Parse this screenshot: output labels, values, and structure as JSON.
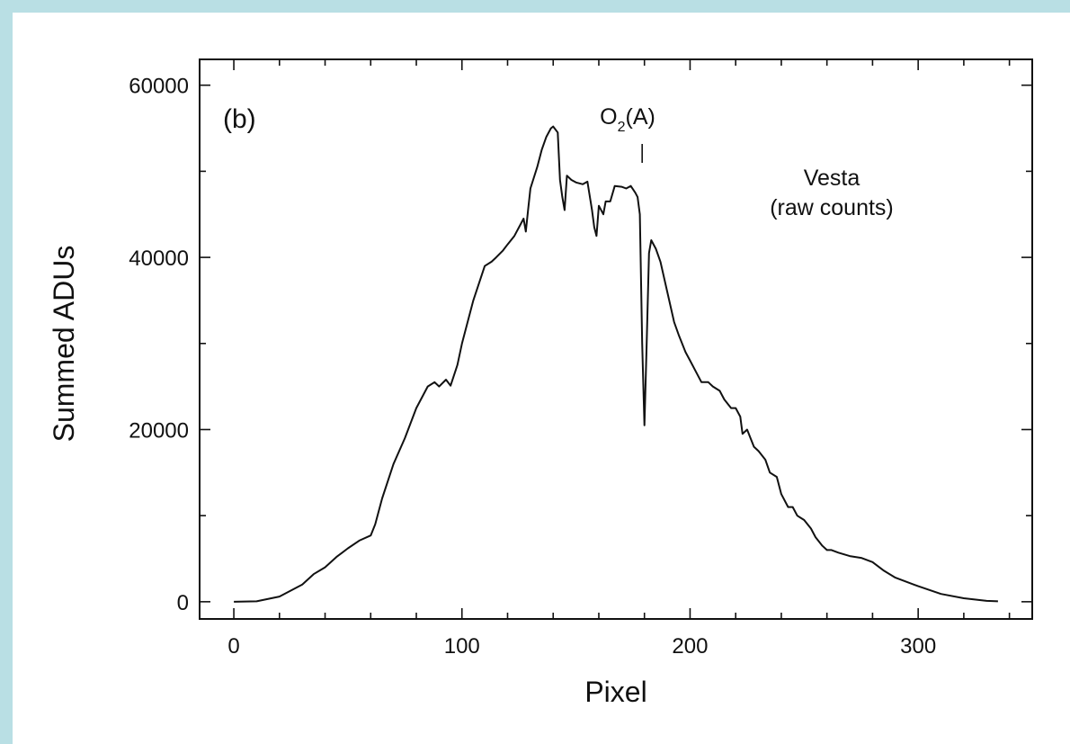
{
  "chart_data": {
    "type": "line",
    "panel_label": "(b)",
    "xlabel": "Pixel",
    "ylabel": "Summed ADUs",
    "xlim": [
      -15,
      350
    ],
    "ylim": [
      -2000,
      63000
    ],
    "x_ticks": [
      0,
      100,
      200,
      300
    ],
    "x_tick_labels": [
      "0",
      "100",
      "200",
      "300"
    ],
    "y_ticks": [
      0,
      20000,
      40000,
      60000
    ],
    "y_tick_labels": [
      "0",
      "20000",
      "40000",
      "60000"
    ],
    "x_minor_step": 20,
    "y_minor_step": 10000,
    "grid": false,
    "annotations": {
      "o2": {
        "base": "O",
        "sub": "2",
        "rest": "(A)",
        "x": 179
      },
      "target": {
        "line1": "Vesta",
        "line2": "(raw counts)"
      }
    },
    "series": [
      {
        "color": "#111111",
        "x": [
          0,
          10,
          20,
          30,
          35,
          40,
          45,
          50,
          55,
          60,
          62,
          65,
          70,
          75,
          80,
          85,
          88,
          90,
          93,
          95,
          98,
          100,
          105,
          110,
          113,
          115,
          118,
          120,
          123,
          125,
          127,
          128,
          129,
          130,
          133,
          135,
          137,
          139,
          140,
          142,
          143,
          144,
          145,
          146,
          148,
          150,
          153,
          155,
          157,
          158,
          159,
          160,
          162,
          163,
          165,
          167,
          170,
          172,
          174,
          176,
          177,
          178,
          179,
          180,
          181,
          182,
          183,
          185,
          187,
          190,
          193,
          195,
          198,
          200,
          203,
          205,
          208,
          210,
          213,
          215,
          218,
          220,
          222,
          223,
          225,
          228,
          230,
          233,
          235,
          238,
          240,
          243,
          245,
          247,
          250,
          253,
          255,
          258,
          260,
          262,
          265,
          270,
          275,
          280,
          285,
          290,
          300,
          310,
          320,
          330,
          335
        ],
        "y": [
          0,
          50,
          600,
          2000,
          3200,
          4000,
          5200,
          6200,
          7100,
          7700,
          9000,
          12000,
          16000,
          19000,
          22500,
          25000,
          25500,
          25000,
          25800,
          25100,
          27500,
          30000,
          35000,
          39000,
          39500,
          40000,
          40800,
          41500,
          42500,
          43500,
          44500,
          43000,
          45500,
          48000,
          50500,
          52500,
          54000,
          55000,
          55200,
          54500,
          49000,
          47000,
          45500,
          49500,
          49000,
          48700,
          48500,
          48800,
          45500,
          43500,
          42500,
          46000,
          45000,
          46500,
          46500,
          48300,
          48200,
          48000,
          48300,
          47500,
          47000,
          45000,
          30000,
          20500,
          30000,
          40500,
          42000,
          41000,
          39500,
          36000,
          32500,
          31000,
          29000,
          28000,
          26500,
          25500,
          25500,
          25000,
          24500,
          23500,
          22500,
          22500,
          21500,
          19500,
          20000,
          18000,
          17500,
          16500,
          15000,
          14500,
          12500,
          11000,
          11000,
          10000,
          9500,
          8500,
          7500,
          6500,
          6000,
          6000,
          5700,
          5300,
          5100,
          4600,
          3600,
          2800,
          1800,
          900,
          400,
          100,
          50
        ]
      }
    ]
  }
}
